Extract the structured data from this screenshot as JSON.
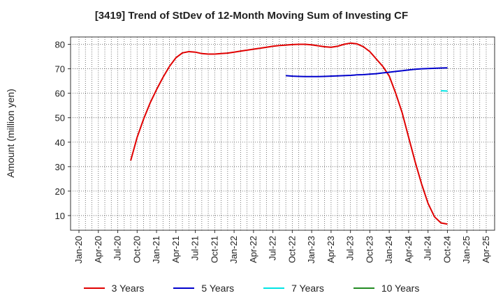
{
  "chart_data": {
    "type": "line",
    "title": "[3419]  Trend of StDev of 12-Month Moving Sum of Investing CF",
    "ylabel": "Amount (million yen)",
    "xlabel": "",
    "ylim": [
      4,
      83
    ],
    "yticks": [
      10,
      20,
      30,
      40,
      50,
      60,
      70,
      80
    ],
    "xticks": [
      "Jan-20",
      "Apr-20",
      "Jul-20",
      "Oct-20",
      "Jan-21",
      "Apr-21",
      "Jul-21",
      "Oct-21",
      "Jan-22",
      "Apr-22",
      "Jul-22",
      "Oct-22",
      "Jan-23",
      "Apr-23",
      "Jul-23",
      "Oct-23",
      "Jan-24",
      "Apr-24",
      "Jul-24",
      "Oct-24",
      "Jan-25",
      "Apr-25"
    ],
    "x_start": "Jan-20",
    "grid": true,
    "legend_position": "bottom",
    "series": [
      {
        "name": "3 Years",
        "color": "#e00000",
        "x": [
          "Sep-20",
          "Oct-20",
          "Nov-20",
          "Dec-20",
          "Jan-21",
          "Feb-21",
          "Mar-21",
          "Apr-21",
          "May-21",
          "Jun-21",
          "Jul-21",
          "Aug-21",
          "Sep-21",
          "Oct-21",
          "Nov-21",
          "Dec-21",
          "Jan-22",
          "Feb-22",
          "Mar-22",
          "Apr-22",
          "May-22",
          "Jun-22",
          "Jul-22",
          "Aug-22",
          "Sep-22",
          "Oct-22",
          "Nov-22",
          "Dec-22",
          "Jan-23",
          "Feb-23",
          "Mar-23",
          "Apr-23",
          "May-23",
          "Jun-23",
          "Jul-23",
          "Aug-23",
          "Sep-23",
          "Oct-23",
          "Nov-23",
          "Dec-23",
          "Jan-24",
          "Feb-24",
          "Mar-24",
          "Apr-24",
          "May-24",
          "Jun-24",
          "Jul-24",
          "Aug-24",
          "Sep-24",
          "Oct-24"
        ],
        "values": [
          32.5,
          42,
          49.5,
          56,
          61.5,
          66.5,
          71,
          74.5,
          76.5,
          77,
          76.8,
          76.2,
          76,
          76,
          76.2,
          76.4,
          76.8,
          77.2,
          77.6,
          78,
          78.4,
          78.8,
          79.2,
          79.5,
          79.7,
          79.9,
          80,
          80,
          79.8,
          79.4,
          79,
          78.8,
          79.2,
          80,
          80.5,
          80.2,
          79,
          77,
          74,
          71,
          67,
          60,
          52,
          42,
          32,
          23,
          15,
          9.5,
          7,
          6.5
        ]
      },
      {
        "name": "5 Years",
        "color": "#0000cc",
        "x": [
          "Sep-22",
          "Oct-22",
          "Nov-22",
          "Dec-22",
          "Jan-23",
          "Feb-23",
          "Mar-23",
          "Apr-23",
          "May-23",
          "Jun-23",
          "Jul-23",
          "Aug-23",
          "Sep-23",
          "Oct-23",
          "Nov-23",
          "Dec-23",
          "Jan-24",
          "Feb-24",
          "Mar-24",
          "Apr-24",
          "May-24",
          "Jun-24",
          "Jul-24",
          "Aug-24",
          "Sep-24",
          "Oct-24"
        ],
        "values": [
          67.2,
          67,
          66.9,
          66.8,
          66.8,
          66.8,
          66.9,
          67,
          67.1,
          67.2,
          67.3,
          67.5,
          67.6,
          67.8,
          68,
          68.3,
          68.6,
          68.9,
          69.2,
          69.5,
          69.8,
          70,
          70.1,
          70.2,
          70.3,
          70.4
        ]
      },
      {
        "name": "7 Years",
        "color": "#00e5e5",
        "x": [
          "Sep-24",
          "Oct-24"
        ],
        "values": [
          61,
          60.9
        ]
      },
      {
        "name": "10 Years",
        "color": "#228b22",
        "x": [],
        "values": []
      }
    ]
  }
}
